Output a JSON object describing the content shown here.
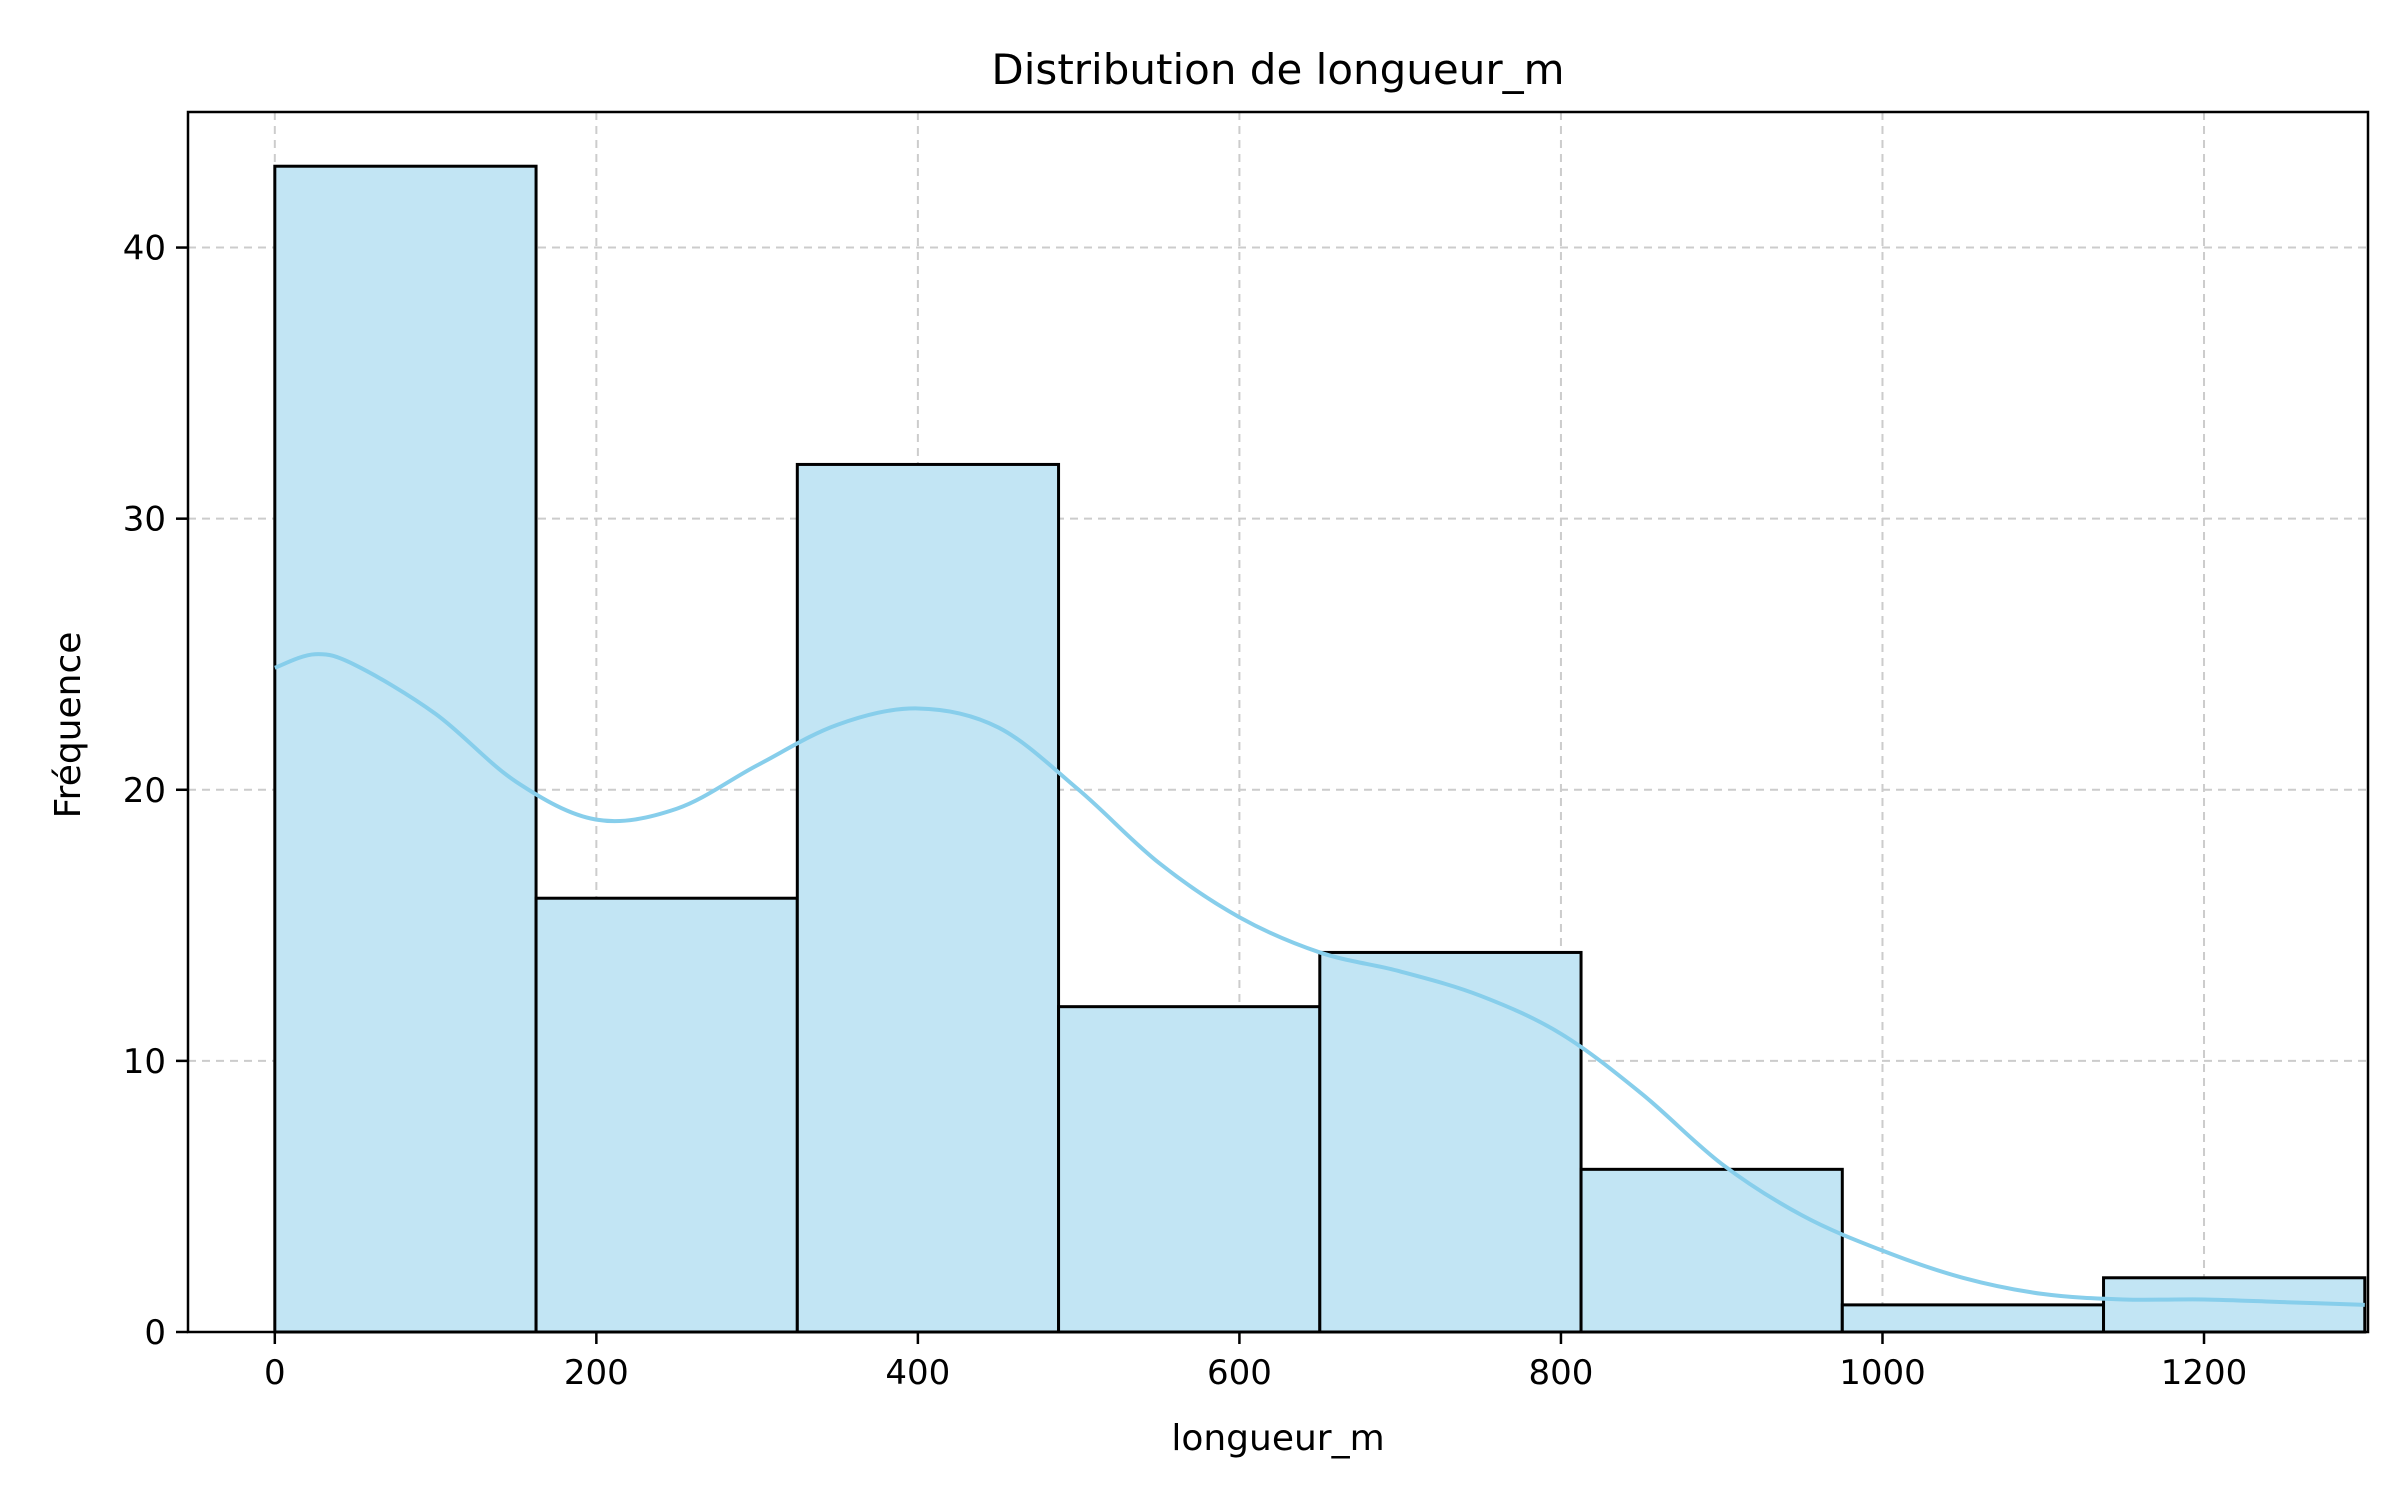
{
  "chart_data": {
    "type": "bar",
    "title": "Distribution de longueur_m",
    "xlabel": "longueur_m",
    "ylabel": "Fréquence",
    "xlim": [
      -54,
      1300
    ],
    "ylim": [
      0,
      45
    ],
    "grid": true,
    "bar_color": "#c2e5f4",
    "edge_color": "#000000",
    "kde_color": "#87ceeb",
    "bins": [
      {
        "x0": 0,
        "x1": 162.5,
        "count": 43
      },
      {
        "x0": 162.5,
        "x1": 325,
        "count": 16
      },
      {
        "x0": 325,
        "x1": 487.5,
        "count": 32
      },
      {
        "x0": 487.5,
        "x1": 650,
        "count": 12
      },
      {
        "x0": 650,
        "x1": 812.5,
        "count": 14
      },
      {
        "x0": 812.5,
        "x1": 975,
        "count": 6
      },
      {
        "x0": 975,
        "x1": 1137.5,
        "count": 1
      },
      {
        "x0": 1137.5,
        "x1": 1300,
        "count": 2
      }
    ],
    "kde": [
      [
        0,
        24.5
      ],
      [
        25,
        25.0
      ],
      [
        50,
        24.6
      ],
      [
        100,
        22.8
      ],
      [
        150,
        20.3
      ],
      [
        200,
        18.9
      ],
      [
        250,
        19.3
      ],
      [
        300,
        20.9
      ],
      [
        350,
        22.4
      ],
      [
        400,
        23.0
      ],
      [
        450,
        22.3
      ],
      [
        500,
        20.0
      ],
      [
        550,
        17.3
      ],
      [
        600,
        15.3
      ],
      [
        650,
        14.0
      ],
      [
        700,
        13.3
      ],
      [
        750,
        12.4
      ],
      [
        800,
        11.0
      ],
      [
        850,
        8.8
      ],
      [
        900,
        6.2
      ],
      [
        950,
        4.3
      ],
      [
        1000,
        3.0
      ],
      [
        1050,
        2.0
      ],
      [
        1100,
        1.4
      ],
      [
        1150,
        1.2
      ],
      [
        1200,
        1.2
      ],
      [
        1250,
        1.1
      ],
      [
        1300,
        1.0
      ]
    ],
    "xticks": [
      0,
      200,
      400,
      600,
      800,
      1000,
      1200
    ],
    "yticks": [
      0,
      10,
      20,
      30,
      40
    ],
    "xtick_labels": [
      "0",
      "200",
      "400",
      "600",
      "800",
      "1000",
      "1200"
    ],
    "ytick_labels": [
      "0",
      "10",
      "20",
      "30",
      "40"
    ]
  }
}
